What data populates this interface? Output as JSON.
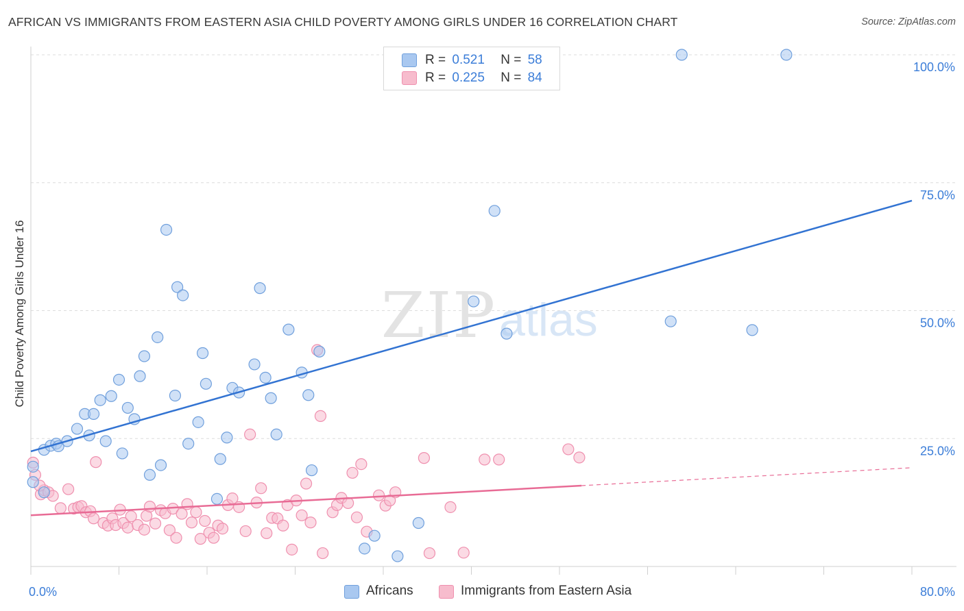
{
  "title": "AFRICAN VS IMMIGRANTS FROM EASTERN ASIA CHILD POVERTY AMONG GIRLS UNDER 16 CORRELATION CHART",
  "source": "Source: ZipAtlas.com",
  "watermark": {
    "zip": "ZIP",
    "atlas": "atlas"
  },
  "legend": {
    "r_label": "R =",
    "n_label": "N =",
    "series1": {
      "r": "0.521",
      "n": "58"
    },
    "series2": {
      "r": "0.225",
      "n": "84"
    }
  },
  "bottom_legend": {
    "series1": "Africans",
    "series2": "Immigrants from Eastern Asia"
  },
  "chart_data": {
    "type": "scatter",
    "title": "AFRICAN VS IMMIGRANTS FROM EASTERN ASIA CHILD POVERTY AMONG GIRLS UNDER 16 CORRELATION CHART",
    "xlabel": "",
    "ylabel": "Child Poverty Among Girls Under 16",
    "xlim": [
      0,
      80
    ],
    "ylim": [
      0,
      100
    ],
    "x_tick_labels": [
      "0.0%",
      "80.0%"
    ],
    "y_tick_labels": [
      "25.0%",
      "50.0%",
      "75.0%",
      "100.0%"
    ],
    "y_ticks": [
      25,
      50,
      75,
      100
    ],
    "grid": true,
    "legend_position": "top-center",
    "colors": {
      "series1_fill": "#a9c8f0",
      "series1_stroke": "#6f9fdc",
      "series1_line": "#3273d2",
      "series2_fill": "#f7bccd",
      "series2_stroke": "#ef8fae",
      "series2_line": "#e86b95"
    },
    "series": [
      {
        "name": "Africans",
        "trend": {
          "x0": 0,
          "y0": 22.5,
          "x1": 80,
          "y1": 71.5
        },
        "points": [
          [
            0.2,
            19.5
          ],
          [
            0.2,
            16.5
          ],
          [
            1.2,
            22.8
          ],
          [
            1.8,
            23.6
          ],
          [
            2.3,
            24.0
          ],
          [
            2.5,
            23.5
          ],
          [
            3.3,
            24.5
          ],
          [
            4.2,
            26.9
          ],
          [
            4.9,
            29.8
          ],
          [
            5.3,
            25.6
          ],
          [
            5.7,
            29.8
          ],
          [
            6.3,
            32.5
          ],
          [
            6.8,
            24.5
          ],
          [
            7.3,
            33.3
          ],
          [
            8.0,
            36.5
          ],
          [
            8.3,
            22.1
          ],
          [
            8.8,
            31.0
          ],
          [
            9.4,
            28.8
          ],
          [
            9.9,
            37.2
          ],
          [
            10.3,
            41.1
          ],
          [
            10.8,
            17.9
          ],
          [
            11.5,
            44.8
          ],
          [
            11.8,
            19.8
          ],
          [
            12.3,
            65.8
          ],
          [
            13.1,
            33.4
          ],
          [
            13.3,
            54.6
          ],
          [
            13.8,
            53.0
          ],
          [
            14.3,
            24.0
          ],
          [
            15.2,
            28.2
          ],
          [
            15.6,
            41.7
          ],
          [
            15.9,
            35.7
          ],
          [
            16.9,
            13.2
          ],
          [
            17.2,
            21.0
          ],
          [
            17.8,
            25.2
          ],
          [
            18.3,
            34.9
          ],
          [
            18.9,
            34.0
          ],
          [
            20.3,
            39.5
          ],
          [
            20.8,
            54.4
          ],
          [
            21.3,
            36.9
          ],
          [
            21.8,
            32.9
          ],
          [
            22.3,
            25.8
          ],
          [
            23.4,
            46.3
          ],
          [
            24.6,
            37.9
          ],
          [
            25.2,
            33.5
          ],
          [
            25.5,
            18.8
          ],
          [
            26.2,
            42.0
          ],
          [
            30.3,
            3.5
          ],
          [
            31.2,
            6.0
          ],
          [
            33.3,
            2.0
          ],
          [
            35.2,
            8.5
          ],
          [
            40.2,
            51.8
          ],
          [
            42.1,
            69.5
          ],
          [
            43.2,
            45.5
          ],
          [
            58.1,
            47.9
          ],
          [
            59.1,
            100.0
          ],
          [
            68.6,
            100.0
          ],
          [
            65.5,
            46.2
          ],
          [
            1.2,
            14.5
          ]
        ]
      },
      {
        "name": "Immigrants from Eastern Asia",
        "trend": {
          "x0": 0,
          "y0": 10.0,
          "x1": 50,
          "y1": 15.8,
          "dash_to_x": 80,
          "dash_to_y": 19.3
        },
        "points": [
          [
            0.2,
            20.3
          ],
          [
            0.4,
            17.9
          ],
          [
            0.9,
            14.1
          ],
          [
            1.2,
            14.9
          ],
          [
            1.6,
            14.5
          ],
          [
            2.0,
            13.8
          ],
          [
            2.7,
            11.4
          ],
          [
            3.4,
            15.1
          ],
          [
            3.9,
            11.3
          ],
          [
            4.3,
            11.6
          ],
          [
            4.6,
            11.8
          ],
          [
            5.0,
            10.6
          ],
          [
            5.4,
            10.8
          ],
          [
            5.7,
            9.4
          ],
          [
            5.9,
            20.4
          ],
          [
            6.6,
            8.5
          ],
          [
            7.0,
            8.0
          ],
          [
            7.4,
            9.4
          ],
          [
            7.7,
            8.1
          ],
          [
            8.1,
            11.1
          ],
          [
            8.4,
            8.5
          ],
          [
            8.8,
            7.6
          ],
          [
            9.1,
            9.8
          ],
          [
            9.7,
            8.1
          ],
          [
            10.3,
            7.2
          ],
          [
            10.5,
            9.9
          ],
          [
            10.8,
            11.7
          ],
          [
            11.3,
            8.4
          ],
          [
            11.8,
            11.0
          ],
          [
            12.2,
            10.4
          ],
          [
            12.6,
            7.1
          ],
          [
            12.9,
            11.3
          ],
          [
            13.2,
            5.6
          ],
          [
            13.7,
            10.3
          ],
          [
            14.2,
            12.2
          ],
          [
            14.6,
            8.6
          ],
          [
            15.0,
            10.6
          ],
          [
            15.4,
            5.4
          ],
          [
            15.8,
            8.9
          ],
          [
            16.2,
            6.6
          ],
          [
            16.6,
            5.6
          ],
          [
            17.0,
            8.0
          ],
          [
            17.4,
            7.4
          ],
          [
            17.9,
            12.0
          ],
          [
            18.3,
            13.3
          ],
          [
            18.9,
            11.6
          ],
          [
            19.5,
            6.9
          ],
          [
            19.9,
            25.8
          ],
          [
            20.5,
            12.5
          ],
          [
            20.9,
            15.3
          ],
          [
            21.4,
            6.5
          ],
          [
            21.9,
            9.5
          ],
          [
            22.4,
            9.4
          ],
          [
            22.9,
            8.0
          ],
          [
            23.3,
            12.0
          ],
          [
            23.7,
            3.3
          ],
          [
            24.1,
            12.9
          ],
          [
            24.6,
            10.0
          ],
          [
            25.0,
            16.2
          ],
          [
            25.4,
            8.6
          ],
          [
            26.0,
            42.3
          ],
          [
            26.3,
            29.4
          ],
          [
            26.5,
            2.6
          ],
          [
            27.4,
            10.6
          ],
          [
            27.8,
            12.0
          ],
          [
            28.2,
            13.4
          ],
          [
            28.8,
            12.4
          ],
          [
            29.2,
            18.3
          ],
          [
            29.6,
            9.6
          ],
          [
            30.0,
            20.0
          ],
          [
            30.5,
            6.8
          ],
          [
            31.6,
            13.9
          ],
          [
            32.2,
            11.9
          ],
          [
            32.6,
            12.9
          ],
          [
            33.1,
            14.5
          ],
          [
            35.7,
            21.2
          ],
          [
            36.2,
            2.6
          ],
          [
            38.1,
            11.6
          ],
          [
            39.3,
            2.7
          ],
          [
            41.2,
            20.9
          ],
          [
            42.5,
            20.9
          ],
          [
            48.8,
            22.9
          ],
          [
            49.8,
            21.3
          ],
          [
            0.8,
            15.8
          ]
        ]
      }
    ]
  }
}
